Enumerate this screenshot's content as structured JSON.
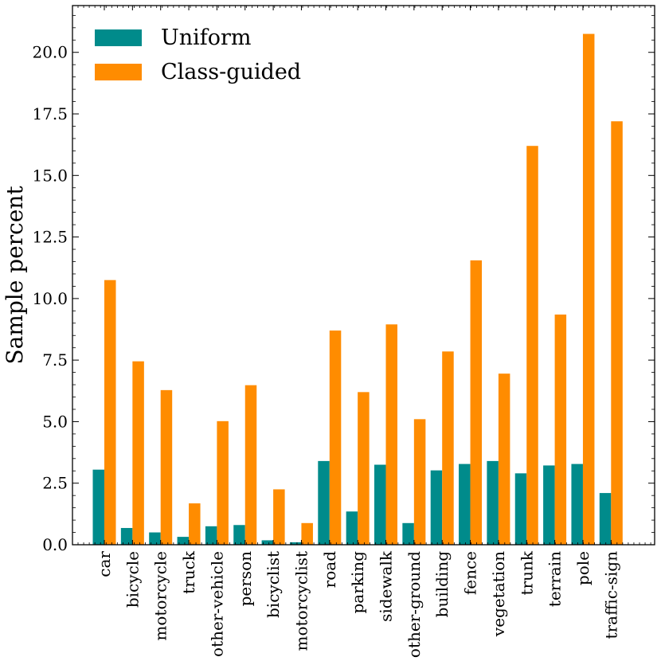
{
  "chart_data": {
    "type": "bar",
    "title": "",
    "xlabel": "",
    "ylabel": "Sample percent",
    "ylim": [
      0,
      21.9
    ],
    "yticks": [
      "0.0",
      "2.5",
      "5.0",
      "7.5",
      "10.0",
      "12.5",
      "15.0",
      "17.5",
      "20.0"
    ],
    "yticks_values": [
      0,
      2.5,
      5.0,
      7.5,
      10.0,
      12.5,
      15.0,
      17.5,
      20.0
    ],
    "grid": false,
    "legend_position": "top-left",
    "categories": [
      "car",
      "bicycle",
      "motorcycle",
      "truck",
      "other-vehicle",
      "person",
      "bicyclist",
      "motorcyclist",
      "road",
      "parking",
      "sidewalk",
      "other-ground",
      "building",
      "fence",
      "vegetation",
      "trunk",
      "terrain",
      "pole",
      "traffic-sign"
    ],
    "series": [
      {
        "name": "Uniform",
        "color": "#008b8b",
        "values": [
          3.05,
          0.68,
          0.5,
          0.32,
          0.75,
          0.8,
          0.18,
          0.1,
          3.4,
          1.35,
          3.25,
          0.88,
          3.02,
          3.28,
          3.4,
          2.9,
          3.22,
          3.28,
          2.1
        ]
      },
      {
        "name": "Class-guided",
        "color": "#ff8c00",
        "values": [
          10.75,
          7.45,
          6.28,
          1.68,
          5.02,
          6.48,
          2.25,
          0.88,
          8.7,
          6.2,
          8.95,
          5.1,
          7.85,
          11.55,
          6.95,
          16.2,
          9.35,
          20.75,
          17.2
        ]
      }
    ]
  }
}
